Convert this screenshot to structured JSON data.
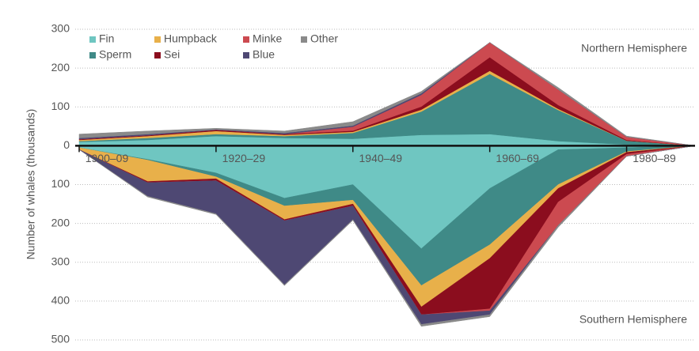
{
  "chart_data": {
    "type": "area",
    "y_label": "Number of whales (thousands)",
    "annotations": [
      "Northern Hemisphere",
      "Southern Hemisphere"
    ],
    "categories": [
      "1900–09",
      null,
      "1920–29",
      null,
      "1940–49",
      null,
      "1960–69",
      null,
      "1980–89",
      null
    ],
    "ylim": [
      -500,
      300
    ],
    "yticks": [
      300,
      200,
      100,
      0,
      {
        "value": -100,
        "label": "100"
      },
      {
        "value": -200,
        "label": "200"
      },
      {
        "value": -300,
        "label": "300"
      },
      {
        "value": -400,
        "label": "400"
      },
      {
        "value": -500,
        "label": "500"
      }
    ],
    "grid": true,
    "series": [
      {
        "name": "Fin",
        "color": "#6fc6c1",
        "values": [
          10,
          15,
          25,
          20,
          18,
          28,
          30,
          12,
          3,
          0
        ],
        "south_values": [
          -5,
          -35,
          -70,
          -135,
          -100,
          -265,
          -110,
          -10,
          -5,
          0
        ]
      },
      {
        "name": "Sperm",
        "color": "#3f8a87",
        "values": [
          2,
          5,
          5,
          5,
          15,
          60,
          155,
          80,
          10,
          0
        ],
        "south_values": [
          0,
          -2,
          -10,
          -20,
          -40,
          -95,
          -145,
          -90,
          -10,
          0
        ]
      },
      {
        "name": "Humpback",
        "color": "#e8b04a",
        "values": [
          3,
          5,
          8,
          3,
          3,
          5,
          8,
          3,
          0,
          0
        ],
        "south_values": [
          -5,
          -55,
          -5,
          -35,
          -10,
          -55,
          -35,
          -10,
          -2,
          0
        ]
      },
      {
        "name": "Sei",
        "color": "#8b0d1e",
        "values": [
          2,
          2,
          3,
          2,
          3,
          8,
          35,
          10,
          2,
          0
        ],
        "south_values": [
          0,
          -3,
          -5,
          -3,
          -5,
          -20,
          -130,
          -35,
          -5,
          0
        ]
      },
      {
        "name": "Minke",
        "color": "#cc4a50",
        "values": [
          0,
          0,
          0,
          0,
          10,
          30,
          38,
          40,
          8,
          0
        ],
        "south_values": [
          0,
          0,
          0,
          0,
          0,
          0,
          -5,
          -60,
          -5,
          0
        ]
      },
      {
        "name": "Blue",
        "color": "#4e4873",
        "values": [
          3,
          3,
          1,
          3,
          3,
          4,
          0,
          0,
          0,
          0
        ],
        "south_values": [
          0,
          -35,
          -85,
          -165,
          -35,
          -25,
          -10,
          0,
          0,
          0
        ]
      },
      {
        "name": "Other",
        "color": "#8a8a8a",
        "values": [
          10,
          8,
          3,
          5,
          10,
          5,
          0,
          5,
          2,
          0
        ],
        "south_values": [
          0,
          -2,
          -2,
          -2,
          -2,
          -5,
          -5,
          -5,
          0,
          0
        ]
      }
    ]
  }
}
